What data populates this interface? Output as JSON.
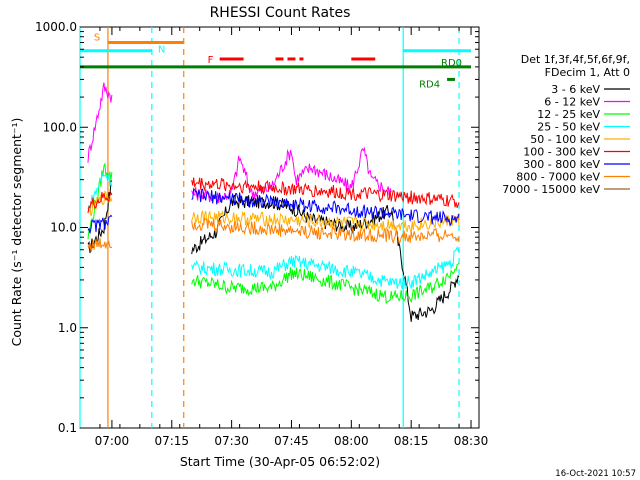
{
  "chart_data": {
    "type": "line",
    "title": "RHESSI Count Rates",
    "xlabel": "Start Time (30-Apr-05 06:52:02)",
    "ylabel": "Count Rate (s⁻¹ detector segment⁻¹)",
    "y_scale": "log",
    "ylim": [
      0.1,
      1000
    ],
    "xlim": [
      "06:52",
      "08:32"
    ],
    "x_tick_labels": [
      "07:00",
      "07:15",
      "07:30",
      "07:45",
      "08:00",
      "08:15",
      "08:30"
    ],
    "y_tick_labels": [
      "0.1",
      "1.0",
      "10.0",
      "100.0",
      "1000.0"
    ],
    "grid": false,
    "legend_placement": "right",
    "legend_header": [
      "Det 1f,3f,4f,5f,6f,9f,",
      "FDecim 1, Att 0"
    ],
    "timestamp": "16-Oct-2021 10:57",
    "series": [
      {
        "name": "3 - 6 keV",
        "color": "#000000",
        "x": [
          "06:54",
          "06:58",
          "07:00",
          "07:20",
          "07:26",
          "07:30",
          "07:40",
          "07:45",
          "07:50",
          "08:00",
          "08:05",
          "08:10",
          "08:13",
          "08:15",
          "08:20",
          "08:25",
          "08:27"
        ],
        "values": [
          6,
          10,
          30,
          6,
          9,
          18,
          18,
          16,
          12,
          10,
          12,
          15,
          4,
          1.3,
          1.5,
          2.5,
          3.5
        ]
      },
      {
        "name": "6 - 12 keV",
        "color": "#ff00ff",
        "x": [
          "06:54",
          "06:58",
          "07:20",
          "07:27",
          "07:30",
          "07:32",
          "07:35",
          "07:40",
          "07:45",
          "07:46",
          "07:50",
          "08:00",
          "08:03",
          "08:05",
          "08:08",
          "08:10"
        ],
        "values": [
          50,
          250,
          22,
          20,
          22,
          50,
          22,
          25,
          60,
          30,
          40,
          25,
          60,
          30,
          25,
          22
        ]
      },
      {
        "name": "12 - 25 keV",
        "color": "#00ff00",
        "x": [
          "06:54",
          "06:58",
          "07:20",
          "07:30",
          "07:40",
          "07:45",
          "07:50",
          "08:00",
          "08:10",
          "08:15",
          "08:20",
          "08:25",
          "08:27"
        ],
        "values": [
          8,
          40,
          3,
          2.5,
          2.5,
          3.5,
          3.2,
          2.5,
          2,
          2.1,
          2.5,
          3.5,
          5
        ]
      },
      {
        "name": "25 - 50 keV",
        "color": "#00ffff",
        "x": [
          "06:54",
          "06:58",
          "07:20",
          "07:30",
          "07:40",
          "07:45",
          "07:50",
          "08:00",
          "08:10",
          "08:15",
          "08:20",
          "08:25",
          "08:27"
        ],
        "values": [
          15,
          35,
          4,
          3.8,
          3.6,
          4.6,
          4.3,
          3.6,
          2.8,
          2.9,
          3.5,
          4.5,
          6
        ]
      },
      {
        "name": "50 - 100 keV",
        "color": "#ffb000",
        "x": [
          "06:54",
          "06:58",
          "07:20",
          "07:40",
          "08:00",
          "08:15",
          "08:27"
        ],
        "values": [
          14,
          20,
          13,
          12,
          11,
          10.5,
          12
        ]
      },
      {
        "name": "100 - 300 keV",
        "color": "#ff0000",
        "x": [
          "06:54",
          "06:58",
          "07:20",
          "07:40",
          "08:00",
          "08:15",
          "08:27"
        ],
        "values": [
          16,
          20,
          28,
          25,
          22,
          20,
          18
        ]
      },
      {
        "name": "300 - 800 keV",
        "color": "#0000ff",
        "x": [
          "06:54",
          "06:58",
          "07:20",
          "07:40",
          "08:00",
          "08:15",
          "08:27"
        ],
        "values": [
          10,
          11,
          21,
          18,
          15,
          13,
          12
        ]
      },
      {
        "name": "800 - 7000 keV",
        "color": "#ff8000",
        "x": [
          "06:54",
          "06:58",
          "07:20",
          "07:40",
          "08:00",
          "08:15",
          "08:27"
        ],
        "values": [
          6.5,
          7,
          11,
          9.5,
          8.5,
          8,
          8.5
        ]
      },
      {
        "name": "7000 - 15000 keV",
        "color": "#996633",
        "x": [],
        "values": []
      }
    ],
    "annotations": [
      {
        "label": "S",
        "color": "#ff8000",
        "x_start": "06:59",
        "x_end": "07:18",
        "y": 700
      },
      {
        "label": "N",
        "color": "#00ffff",
        "x_start": "06:52",
        "x_end": "07:10",
        "y": 580
      },
      {
        "label": "F",
        "color": "#ff0000",
        "segments": [
          [
            "07:27",
            "07:33"
          ],
          [
            "07:41",
            "07:43"
          ],
          [
            "07:44",
            "07:46"
          ],
          [
            "07:47",
            "07:48"
          ],
          [
            "08:00",
            "08:06"
          ]
        ],
        "y": 480
      },
      {
        "label": "",
        "color": "#00ffff",
        "x_start": "08:13",
        "x_end": "08:30",
        "y": 580
      },
      {
        "label": "RD0",
        "color": "#008000",
        "x_start": "06:52",
        "x_end": "08:30",
        "y": 400
      },
      {
        "label": "RD4",
        "color": "#008000",
        "x_start": "08:24",
        "x_end": "08:26",
        "y": 300
      }
    ],
    "vertical_markers": [
      {
        "x": "06:52",
        "color": "#00ffff",
        "style": "solid"
      },
      {
        "x": "06:59",
        "color": "#ff8000",
        "style": "solid"
      },
      {
        "x": "07:10",
        "color": "#00ffff",
        "style": "dashed"
      },
      {
        "x": "07:18",
        "color": "#ff8000",
        "style": "dashed"
      },
      {
        "x": "08:13",
        "color": "#00ffff",
        "style": "solid"
      },
      {
        "x": "08:27",
        "color": "#00ffff",
        "style": "dashed"
      }
    ]
  }
}
